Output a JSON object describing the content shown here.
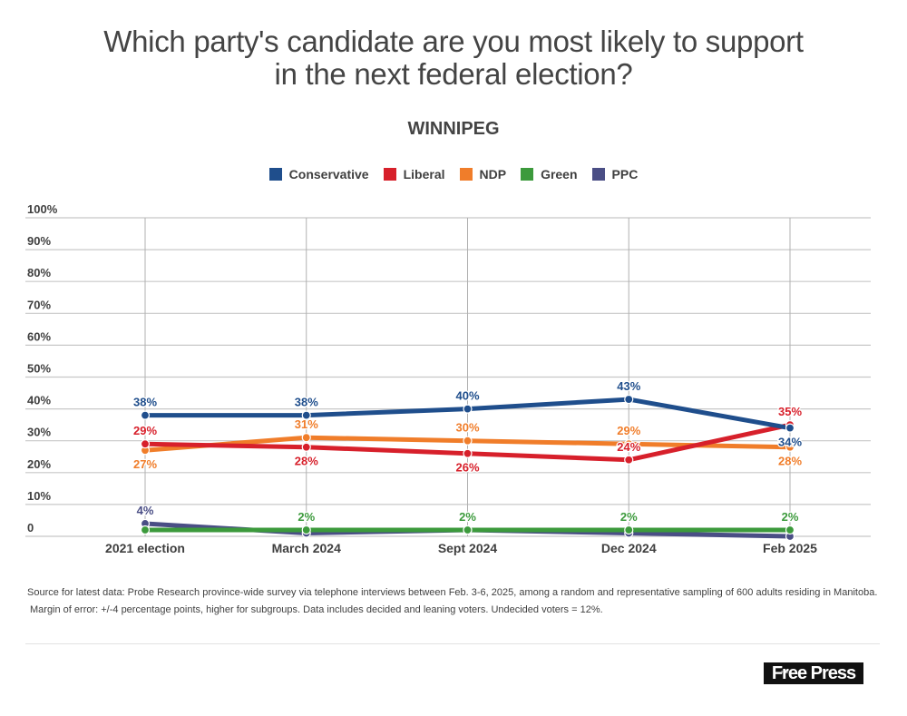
{
  "header": {
    "title_line1": "Which party's candidate are you most likely to support",
    "title_line2": "in the next federal election?",
    "subtitle": "WINNIPEG"
  },
  "chart_data": {
    "type": "line",
    "title": "Which party's candidate are you most likely to support in the next federal election?",
    "subtitle": "WINNIPEG",
    "xlabel": "",
    "ylabel": "",
    "categories": [
      "2021 election",
      "March 2024",
      "Sept 2024",
      "Dec 2024",
      "Feb 2025"
    ],
    "ylim": [
      0,
      100
    ],
    "yticks": [
      0,
      10,
      20,
      30,
      40,
      50,
      60,
      70,
      80,
      90,
      100
    ],
    "ytick_labels": [
      "0",
      "10%",
      "20%",
      "30%",
      "40%",
      "50%",
      "60%",
      "70%",
      "80%",
      "90%",
      "100%"
    ],
    "grid": true,
    "legend_position": "top-center",
    "series": [
      {
        "name": "Conservative",
        "color": "#1f4e8c",
        "values": [
          38,
          38,
          40,
          43,
          34
        ],
        "labels": [
          "38%",
          "38%",
          "40%",
          "43%",
          "34%"
        ],
        "label_pos": [
          "above",
          "above",
          "above",
          "above",
          "below"
        ]
      },
      {
        "name": "Liberal",
        "color": "#d7202b",
        "values": [
          29,
          28,
          26,
          24,
          35
        ],
        "labels": [
          "29%",
          "28%",
          "26%",
          "24%",
          "35%"
        ],
        "label_pos": [
          "above",
          "below",
          "below",
          "above",
          "above"
        ]
      },
      {
        "name": "NDP",
        "color": "#f07d2a",
        "values": [
          27,
          31,
          30,
          29,
          28
        ],
        "labels": [
          "27%",
          "31%",
          "30%",
          "29%",
          "28%"
        ],
        "label_pos": [
          "below",
          "above",
          "above",
          "above",
          "below"
        ]
      },
      {
        "name": "Green",
        "color": "#3c9a3c",
        "values": [
          2,
          2,
          2,
          2,
          2
        ],
        "labels": [
          "",
          "2%",
          "2%",
          "2%",
          "2%"
        ],
        "label_pos": [
          "above",
          "above",
          "above",
          "above",
          "above"
        ]
      },
      {
        "name": "PPC",
        "color": "#4a4e85",
        "values": [
          4,
          1,
          2,
          1,
          0
        ],
        "labels": [
          "4%",
          "",
          "",
          "",
          ""
        ],
        "label_pos": [
          "above",
          "above",
          "above",
          "above",
          "above"
        ]
      }
    ]
  },
  "footnote": {
    "line1": "Source for latest data: Probe Research province-wide survey via telephone interviews between Feb. 3-6, 2025, among a random and representative sampling of 600 adults residing in Manitoba.",
    "line2": "Margin of error: +/-4 percentage points, higher for subgroups. Data includes decided and leaning voters. Undecided voters = 12%."
  },
  "logo": {
    "small": "THE",
    "text": "Free Press"
  }
}
